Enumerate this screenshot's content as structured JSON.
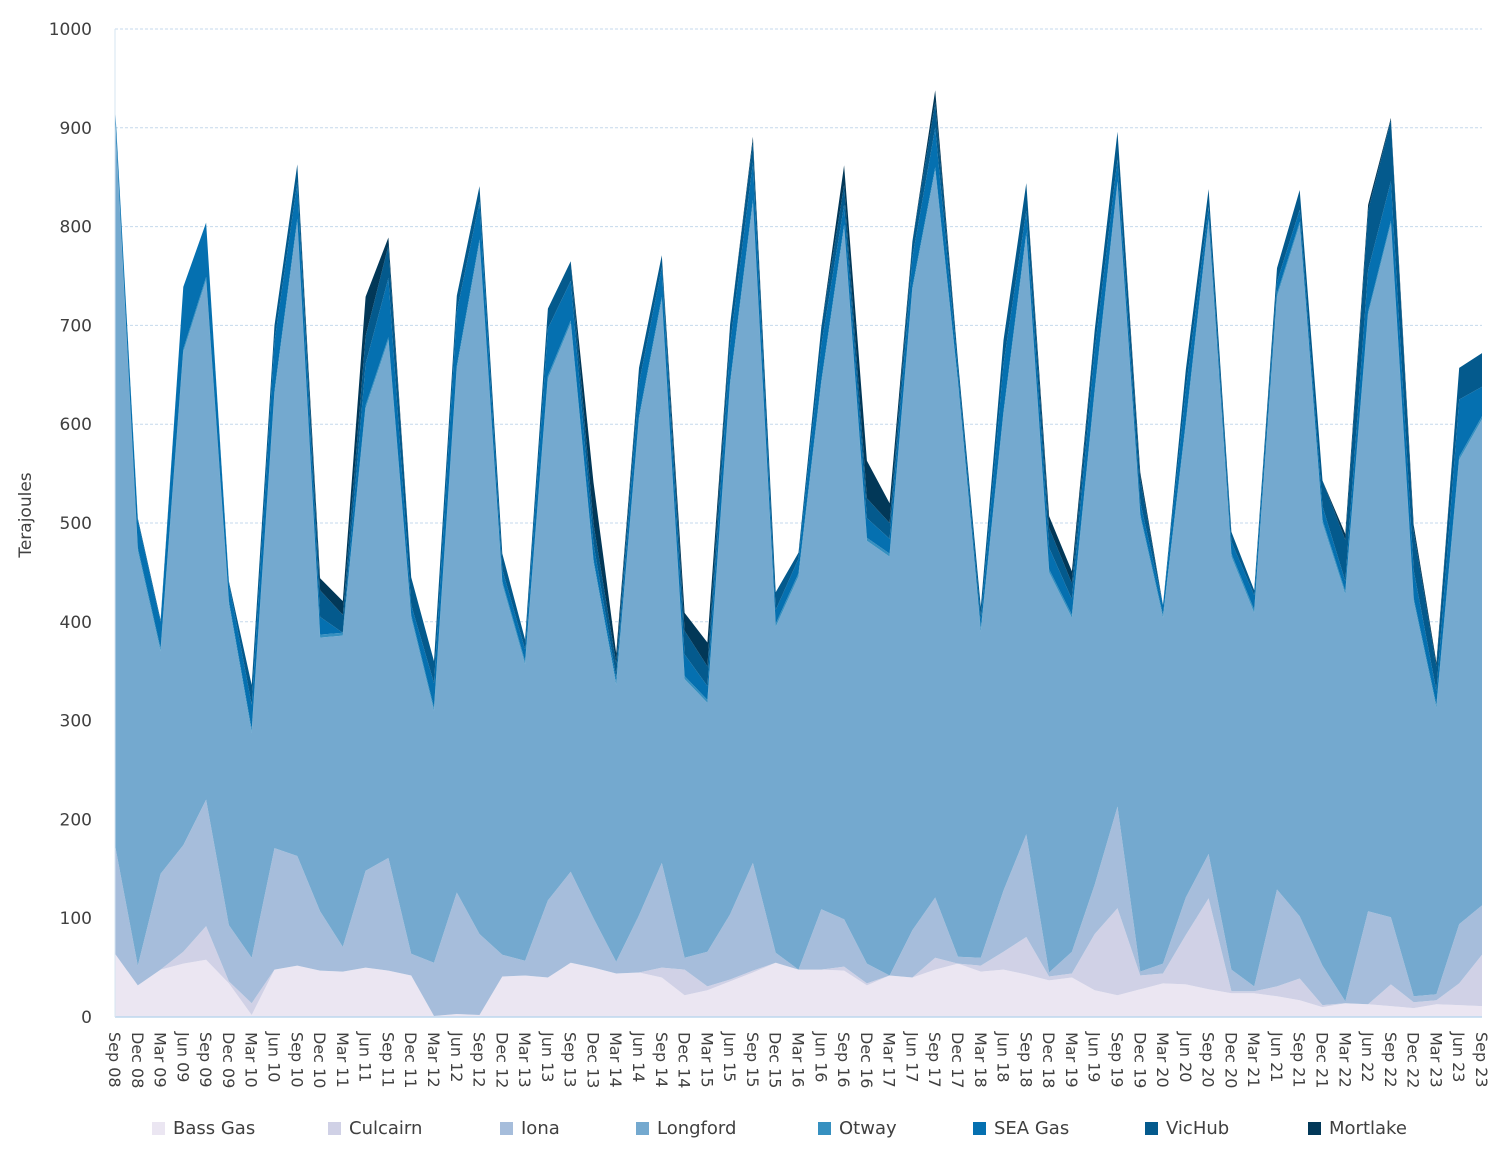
{
  "chart_data": {
    "type": "area",
    "stacked": true,
    "title": "",
    "xlabel": "",
    "ylabel": "Terajoules",
    "ylim": [
      0,
      1000
    ],
    "yticks": [
      0,
      100,
      200,
      300,
      400,
      500,
      600,
      700,
      800,
      900,
      1000
    ],
    "grid": "horizontal dashed",
    "legend_position": "bottom",
    "categories": [
      "Sep 08",
      "Dec 08",
      "Mar 09",
      "Jun 09",
      "Sep 09",
      "Dec 09",
      "Mar 10",
      "Jun 10",
      "Sep 10",
      "Dec 10",
      "Mar 11",
      "Jun 11",
      "Sep 11",
      "Dec 11",
      "Mar 12",
      "Jun 12",
      "Sep 12",
      "Dec 12",
      "Mar 13",
      "Jun 13",
      "Sep 13",
      "Dec 13",
      "Mar 14",
      "Jun 14",
      "Sep 14",
      "Dec 14",
      "Mar 15",
      "Jun 15",
      "Sep 15",
      "Dec 15",
      "Mar 16",
      "Jun 16",
      "Sep 16",
      "Dec 16",
      "Mar 17",
      "Jun 17",
      "Sep 17",
      "Dec 17",
      "Mar 18",
      "Jun 18",
      "Sep 18",
      "Dec 18",
      "Mar 19",
      "Jun 19",
      "Sep 19",
      "Dec 19",
      "Mar 20",
      "Jun 20",
      "Sep 20",
      "Dec 20",
      "Mar 21",
      "Jun 21",
      "Sep 21",
      "Dec 21",
      "Mar 22",
      "Jun 22",
      "Sep 22",
      "Dec 22",
      "Mar 23",
      "Jun 23",
      "Sep 23"
    ],
    "series": [
      {
        "name": "Bass Gas",
        "color": "#ebe6f2",
        "values": [
          64,
          32,
          48,
          54,
          58,
          34,
          2,
          48,
          52,
          47,
          46,
          50,
          47,
          42,
          1,
          3,
          2,
          41,
          42,
          40,
          55,
          50,
          44,
          45,
          40,
          22,
          27,
          36,
          45,
          55,
          48,
          48,
          47,
          32,
          42,
          40,
          48,
          54,
          46,
          48,
          43,
          37,
          40,
          27,
          22,
          28,
          34,
          33,
          28,
          24,
          24,
          21,
          17,
          10,
          14,
          13,
          11,
          9,
          13,
          12,
          11
        ]
      },
      {
        "name": "Culcairn",
        "color": "#d0d1e6",
        "values": [
          0,
          0,
          0,
          12,
          34,
          2,
          12,
          0,
          0,
          0,
          0,
          0,
          0,
          0,
          0,
          0,
          0,
          0,
          0,
          0,
          0,
          0,
          0,
          0,
          10,
          26,
          4,
          2,
          2,
          0,
          0,
          0,
          4,
          2,
          0,
          0,
          12,
          0,
          6,
          18,
          38,
          4,
          4,
          57,
          88,
          14,
          10,
          50,
          92,
          2,
          2,
          10,
          22,
          2,
          0,
          0,
          22,
          6,
          4,
          22,
          52
        ]
      },
      {
        "name": "Iona",
        "color": "#a6bddb",
        "values": [
          110,
          20,
          97,
          108,
          128,
          57,
          46,
          123,
          111,
          60,
          25,
          98,
          114,
          22,
          54,
          123,
          82,
          22,
          15,
          78,
          92,
          50,
          12,
          58,
          106,
          12,
          35,
          66,
          109,
          10,
          0,
          61,
          48,
          20,
          0,
          48,
          61,
          7,
          8,
          62,
          104,
          4,
          22,
          50,
          103,
          4,
          10,
          38,
          45,
          22,
          5,
          98,
          63,
          40,
          2,
          94,
          68,
          6,
          6,
          60,
          50
        ]
      },
      {
        "name": "Longford",
        "color": "#74a9cf",
        "values": [
          736,
          420,
          225,
          499,
          526,
          325,
          228,
          460,
          642,
          277,
          315,
          468,
          524,
          340,
          255,
          530,
          700,
          375,
          300,
          528,
          555,
          360,
          280,
          502,
          570,
          282,
          252,
          536,
          668,
          330,
          398,
          532,
          700,
          428,
          424,
          648,
          736,
          580,
          330,
          482,
          606,
          405,
          338,
          498,
          630,
          460,
          350,
          478,
          640,
          418,
          378,
          600,
          700,
          448,
          412,
          604,
          702,
          400,
          290,
          470,
          492
        ]
      },
      {
        "name": "Otway",
        "color": "#3690c0",
        "values": [
          3,
          3,
          3,
          3,
          3,
          3,
          3,
          3,
          3,
          3,
          3,
          3,
          3,
          3,
          3,
          3,
          3,
          3,
          3,
          3,
          3,
          3,
          3,
          3,
          3,
          3,
          3,
          3,
          3,
          3,
          3,
          3,
          3,
          3,
          3,
          3,
          3,
          3,
          3,
          3,
          3,
          3,
          3,
          3,
          3,
          3,
          3,
          3,
          3,
          3,
          3,
          3,
          3,
          3,
          3,
          3,
          3,
          3,
          3,
          3,
          3
        ]
      },
      {
        "name": "SEA Gas",
        "color": "#0570b0",
        "values": [
          10,
          28,
          27,
          63,
          55,
          18,
          25,
          50,
          37,
          18,
          0,
          42,
          60,
          10,
          25,
          55,
          38,
          12,
          12,
          48,
          40,
          16,
          5,
          33,
          30,
          22,
          14,
          38,
          38,
          14,
          15,
          36,
          20,
          20,
          15,
          30,
          40,
          10,
          10,
          48,
          22,
          22,
          16,
          40,
          22,
          12,
          10,
          33,
          12,
          12,
          15,
          12,
          12,
          14,
          10,
          42,
          40,
          28,
          14,
          58,
          30
        ]
      },
      {
        "name": "VicHub",
        "color": "#045a8d",
        "values": [
          0,
          2,
          2,
          0,
          0,
          2,
          20,
          16,
          18,
          27,
          18,
          28,
          33,
          28,
          22,
          16,
          16,
          16,
          10,
          20,
          20,
          20,
          14,
          16,
          12,
          24,
          20,
          20,
          22,
          18,
          6,
          18,
          20,
          20,
          16,
          16,
          26,
          10,
          12,
          24,
          28,
          20,
          16,
          20,
          28,
          24,
          0,
          20,
          18,
          10,
          5,
          14,
          20,
          26,
          42,
          60,
          62,
          40,
          25,
          32,
          34
        ]
      },
      {
        "name": "Mortlake",
        "color": "#023858",
        "values": [
          0,
          0,
          0,
          0,
          0,
          0,
          0,
          0,
          0,
          12,
          14,
          40,
          8,
          0,
          0,
          0,
          0,
          0,
          0,
          0,
          0,
          42,
          10,
          0,
          0,
          18,
          24,
          0,
          4,
          0,
          0,
          0,
          20,
          38,
          20,
          0,
          12,
          0,
          0,
          0,
          0,
          12,
          12,
          0,
          0,
          6,
          0,
          0,
          0,
          0,
          0,
          0,
          0,
          0,
          6,
          6,
          2,
          6,
          4,
          0,
          0
        ]
      }
    ]
  },
  "axis": {
    "y_label": "Terajoules",
    "y_ticks": [
      "0",
      "100",
      "200",
      "300",
      "400",
      "500",
      "600",
      "700",
      "800",
      "900",
      "1000"
    ]
  },
  "legend": [
    {
      "label": "Bass Gas",
      "color": "#ebe6f2"
    },
    {
      "label": "Culcairn",
      "color": "#d0d1e6"
    },
    {
      "label": "Iona",
      "color": "#a6bddb"
    },
    {
      "label": "Longford",
      "color": "#74a9cf"
    },
    {
      "label": "Otway",
      "color": "#3690c0"
    },
    {
      "label": "SEA Gas",
      "color": "#0570b0"
    },
    {
      "label": "VicHub",
      "color": "#045a8d"
    },
    {
      "label": "Mortlake",
      "color": "#023858"
    }
  ]
}
